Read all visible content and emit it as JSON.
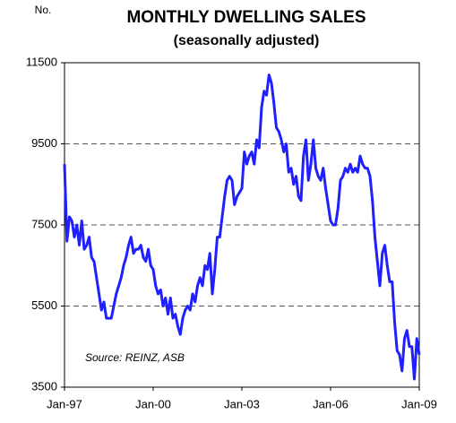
{
  "chart_data": {
    "type": "line",
    "title": "MONTHLY DWELLING SALES",
    "subtitle": "(seasonally adjusted)",
    "y_label": "No.",
    "annotation": "Source: REINZ, ASB",
    "x": [
      "1997-01",
      "1997-02",
      "1997-03",
      "1997-04",
      "1997-05",
      "1997-06",
      "1997-07",
      "1997-08",
      "1997-09",
      "1997-10",
      "1997-11",
      "1997-12",
      "1998-01",
      "1998-02",
      "1998-03",
      "1998-04",
      "1998-05",
      "1998-06",
      "1998-07",
      "1998-08",
      "1998-09",
      "1998-10",
      "1998-11",
      "1998-12",
      "1999-01",
      "1999-02",
      "1999-03",
      "1999-04",
      "1999-05",
      "1999-06",
      "1999-07",
      "1999-08",
      "1999-09",
      "1999-10",
      "1999-11",
      "1999-12",
      "2000-01",
      "2000-02",
      "2000-03",
      "2000-04",
      "2000-05",
      "2000-06",
      "2000-07",
      "2000-08",
      "2000-09",
      "2000-10",
      "2000-11",
      "2000-12",
      "2001-01",
      "2001-02",
      "2001-03",
      "2001-04",
      "2001-05",
      "2001-06",
      "2001-07",
      "2001-08",
      "2001-09",
      "2001-10",
      "2001-11",
      "2001-12",
      "2002-01",
      "2002-02",
      "2002-03",
      "2002-04",
      "2002-05",
      "2002-06",
      "2002-07",
      "2002-08",
      "2002-09",
      "2002-10",
      "2002-11",
      "2002-12",
      "2003-01",
      "2003-02",
      "2003-03",
      "2003-04",
      "2003-05",
      "2003-06",
      "2003-07",
      "2003-08",
      "2003-09",
      "2003-10",
      "2003-11",
      "2003-12",
      "2004-01",
      "2004-02",
      "2004-03",
      "2004-04",
      "2004-05",
      "2004-06",
      "2004-07",
      "2004-08",
      "2004-09",
      "2004-10",
      "2004-11",
      "2004-12",
      "2005-01",
      "2005-02",
      "2005-03",
      "2005-04",
      "2005-05",
      "2005-06",
      "2005-07",
      "2005-08",
      "2005-09",
      "2005-10",
      "2005-11",
      "2005-12",
      "2006-01",
      "2006-02",
      "2006-03",
      "2006-04",
      "2006-05",
      "2006-06",
      "2006-07",
      "2006-08",
      "2006-09",
      "2006-10",
      "2006-11",
      "2006-12",
      "2007-01",
      "2007-02",
      "2007-03",
      "2007-04",
      "2007-05",
      "2007-06",
      "2007-07",
      "2007-08",
      "2007-09",
      "2007-10",
      "2007-11",
      "2007-12",
      "2008-01",
      "2008-02",
      "2008-03",
      "2008-04",
      "2008-05",
      "2008-06",
      "2008-07",
      "2008-08",
      "2008-09",
      "2008-10",
      "2008-11",
      "2008-12",
      "2009-01"
    ],
    "series": [
      {
        "name": "Monthly dwelling sales",
        "color": "#1f1fff",
        "values": [
          9000,
          7100,
          7700,
          7600,
          7200,
          7500,
          7000,
          7600,
          6900,
          7000,
          7200,
          6700,
          6600,
          6200,
          5800,
          5400,
          5600,
          5200,
          5200,
          5200,
          5500,
          5800,
          6000,
          6200,
          6500,
          6700,
          7000,
          7200,
          6800,
          6900,
          6900,
          7000,
          6700,
          6600,
          6900,
          6500,
          6400,
          6000,
          5800,
          5900,
          5500,
          5700,
          5300,
          5700,
          5200,
          5300,
          5000,
          4800,
          5200,
          5400,
          5500,
          5400,
          5800,
          5600,
          6000,
          6200,
          6000,
          6500,
          6400,
          6800,
          5800,
          6400,
          7200,
          7200,
          7700,
          8200,
          8600,
          8700,
          8600,
          8000,
          8200,
          8300,
          8400,
          9300,
          9000,
          9200,
          9300,
          9000,
          9600,
          9400,
          10400,
          10800,
          10700,
          11200,
          11000,
          10500,
          9900,
          9800,
          9600,
          9300,
          9500,
          8800,
          8900,
          8500,
          8700,
          8200,
          8100,
          9200,
          9600,
          8600,
          9000,
          9600,
          8900,
          8700,
          8600,
          8900,
          8400,
          8000,
          7600,
          7500,
          7500,
          7900,
          8600,
          8700,
          8900,
          8800,
          9000,
          8800,
          8900,
          8800,
          9200,
          9000,
          8900,
          8900,
          8700,
          8100,
          7200,
          6600,
          6000,
          6800,
          7000,
          6500,
          6100,
          6100,
          5100,
          4400,
          4300,
          3900,
          4700,
          4900,
          4500,
          4500,
          3700,
          4700,
          4300
        ]
      }
    ],
    "xlim": [
      "1997-01",
      "2009-01"
    ],
    "xticks": [
      {
        "value": "1997-01",
        "label": "Jan-97"
      },
      {
        "value": "2000-01",
        "label": "Jan-00"
      },
      {
        "value": "2003-01",
        "label": "Jan-03"
      },
      {
        "value": "2006-01",
        "label": "Jan-06"
      },
      {
        "value": "2009-01",
        "label": "Jan-09"
      }
    ],
    "ylim": [
      3500,
      11500
    ],
    "yticks": [
      3500,
      5500,
      7500,
      9500,
      11500
    ],
    "grid": true
  }
}
